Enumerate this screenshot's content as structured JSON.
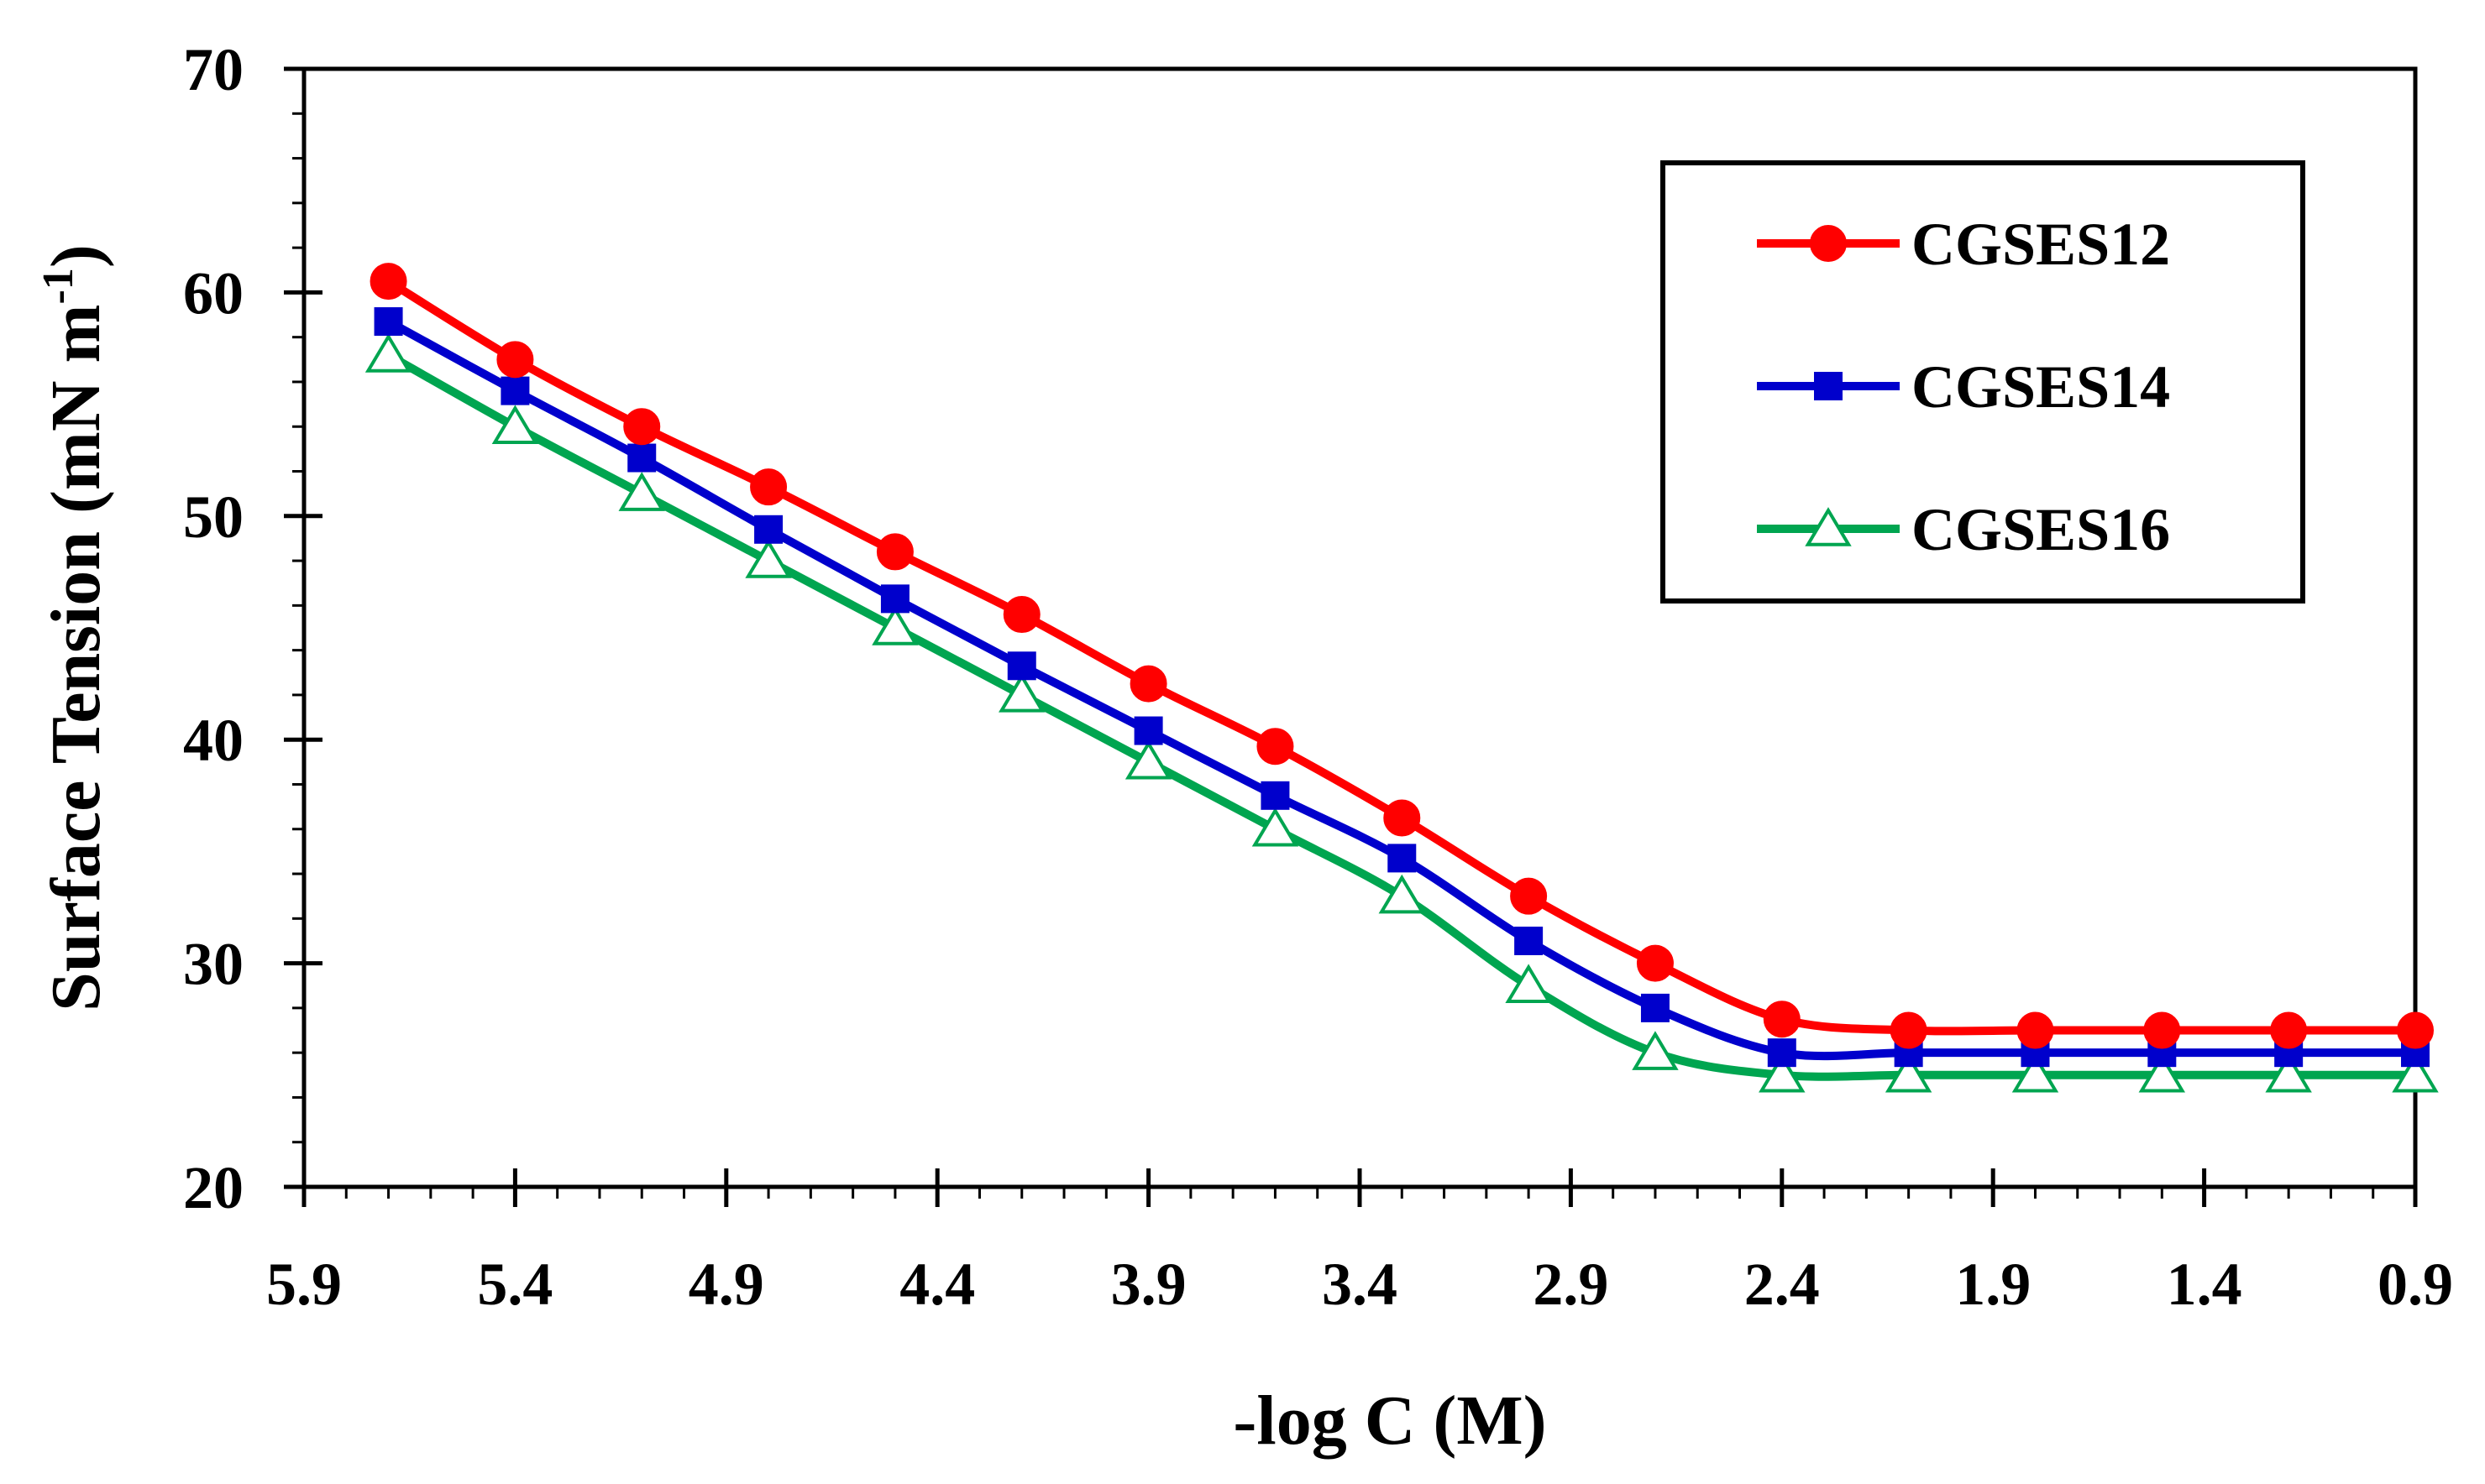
{
  "chart_data": {
    "type": "line",
    "title": "",
    "xlabel": "-log C (M)",
    "ylabel_main": "Surface Tension (mN m",
    "ylabel_sup": "-1",
    "ylabel_close": ")",
    "xlim": [
      5.9,
      0.9
    ],
    "ylim": [
      20,
      70
    ],
    "x_ticks": [
      "5.9",
      "5.4",
      "4.9",
      "4.4",
      "3.9",
      "3.4",
      "2.9",
      "2.4",
      "1.9",
      "1.4",
      "0.9"
    ],
    "y_ticks": [
      "20",
      "30",
      "40",
      "50",
      "60",
      "70"
    ],
    "x": [
      5.7,
      5.4,
      5.1,
      4.8,
      4.5,
      4.2,
      3.9,
      3.6,
      3.3,
      3.0,
      2.7,
      2.4,
      2.1,
      1.8,
      1.5,
      1.2,
      0.9
    ],
    "series": [
      {
        "name": "CGSES12",
        "color": "#ff0000",
        "marker": "circle",
        "values": [
          60.5,
          57.0,
          54.0,
          51.3,
          48.4,
          45.6,
          42.5,
          39.7,
          36.5,
          33.0,
          30.0,
          27.5,
          27.0,
          27.0,
          27.0,
          27.0,
          27.0
        ]
      },
      {
        "name": "CGSES14",
        "color": "#0000cc",
        "marker": "square",
        "values": [
          58.7,
          55.6,
          52.6,
          49.4,
          46.3,
          43.3,
          40.4,
          37.5,
          34.7,
          31.0,
          28.0,
          26.0,
          26.0,
          26.0,
          26.0,
          26.0,
          26.0
        ]
      },
      {
        "name": "CGSES16",
        "color": "#00a550",
        "marker": "triangle",
        "values": [
          57.2,
          54.0,
          51.0,
          48.0,
          45.0,
          42.0,
          39.0,
          36.0,
          33.0,
          29.0,
          26.0,
          25.0,
          25.0,
          25.0,
          25.0,
          25.0,
          25.0
        ]
      }
    ],
    "legend_position": "top-right",
    "grid": false
  }
}
